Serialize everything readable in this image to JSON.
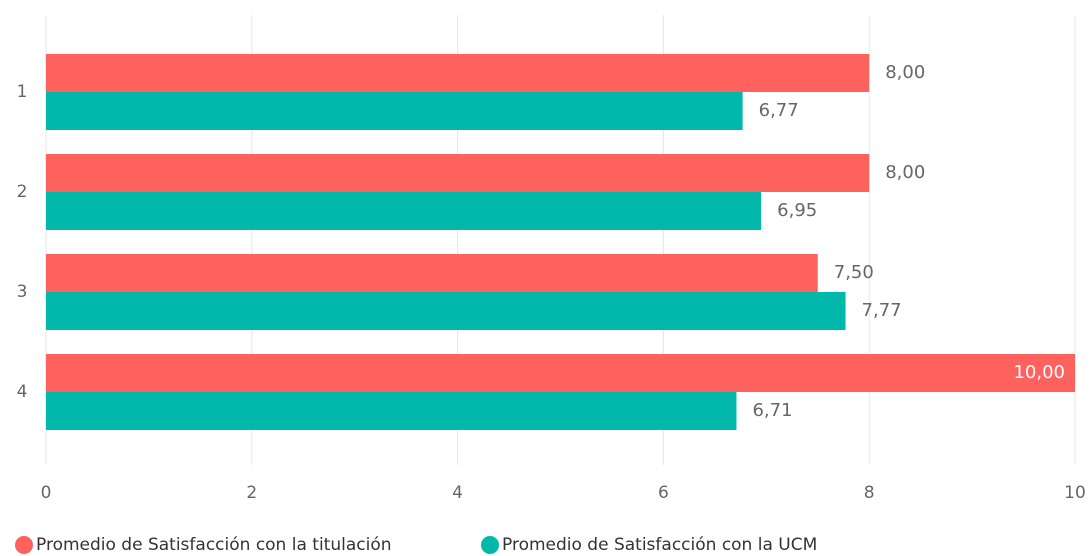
{
  "chart_data": {
    "type": "hbar",
    "categories": [
      "1",
      "2",
      "3",
      "4"
    ],
    "series": [
      {
        "name": "Promedio de Satisfacción con la titulación",
        "color": "#fd625e",
        "values": [
          8.0,
          8.0,
          7.5,
          10.0
        ],
        "value_labels": [
          "8,00",
          "8,00",
          "7,50",
          "10,00"
        ]
      },
      {
        "name": "Promedio de Satisfacción con la UCM",
        "color": "#01b8aa",
        "values": [
          6.77,
          6.95,
          7.77,
          6.71
        ],
        "value_labels": [
          "6,77",
          "6,95",
          "7,77",
          "6,71"
        ]
      }
    ],
    "xlim": [
      0,
      10
    ],
    "xticks": [
      0,
      2,
      4,
      6,
      8,
      10
    ],
    "grid": true,
    "legend": "bottom-left"
  }
}
